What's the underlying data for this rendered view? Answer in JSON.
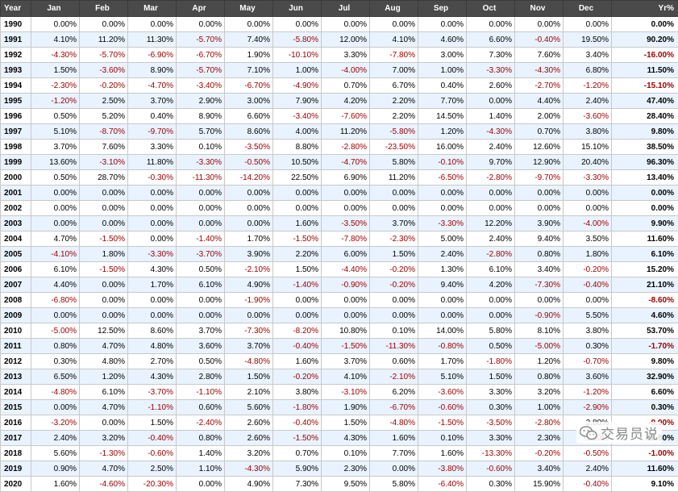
{
  "header": [
    "Year",
    "Jan",
    "Feb",
    "Mar",
    "Apr",
    "May",
    "Jun",
    "Jul",
    "Aug",
    "Sep",
    "Oct",
    "Nov",
    "Dec",
    "Yr%"
  ],
  "rows": [
    [
      "1990",
      "0.00%",
      "0.00%",
      "0.00%",
      "0.00%",
      "0.00%",
      "0.00%",
      "0.00%",
      "0.00%",
      "0.00%",
      "0.00%",
      "0.00%",
      "0.00%",
      "0.00%"
    ],
    [
      "1991",
      "4.10%",
      "11.20%",
      "11.30%",
      "-5.70%",
      "7.40%",
      "-5.80%",
      "12.00%",
      "4.10%",
      "4.60%",
      "6.60%",
      "-0.40%",
      "19.50%",
      "90.20%"
    ],
    [
      "1992",
      "-4.30%",
      "-5.70%",
      "-6.90%",
      "-6.70%",
      "1.90%",
      "-10.10%",
      "3.30%",
      "-7.80%",
      "3.00%",
      "7.30%",
      "7.60%",
      "3.40%",
      "-16.00%"
    ],
    [
      "1993",
      "1.50%",
      "-3.60%",
      "8.90%",
      "-5.70%",
      "7.10%",
      "1.00%",
      "-4.00%",
      "7.00%",
      "1.00%",
      "-3.30%",
      "-4.30%",
      "6.80%",
      "11.50%"
    ],
    [
      "1994",
      "-2.30%",
      "-0.20%",
      "-4.70%",
      "-3.40%",
      "-6.70%",
      "-4.90%",
      "0.70%",
      "6.70%",
      "0.40%",
      "2.60%",
      "-2.70%",
      "-1.20%",
      "-15.10%"
    ],
    [
      "1995",
      "-1.20%",
      "2.50%",
      "3.70%",
      "2.90%",
      "3.00%",
      "7.90%",
      "4.20%",
      "2.20%",
      "7.70%",
      "0.00%",
      "4.40%",
      "2.40%",
      "47.40%"
    ],
    [
      "1996",
      "0.50%",
      "5.20%",
      "0.40%",
      "8.90%",
      "6.60%",
      "-3.40%",
      "-7.60%",
      "2.20%",
      "14.50%",
      "1.40%",
      "2.00%",
      "-3.60%",
      "28.40%"
    ],
    [
      "1997",
      "5.10%",
      "-8.70%",
      "-9.70%",
      "5.70%",
      "8.60%",
      "4.00%",
      "11.20%",
      "-5.80%",
      "1.20%",
      "-4.30%",
      "0.70%",
      "3.80%",
      "9.80%"
    ],
    [
      "1998",
      "3.70%",
      "7.60%",
      "3.30%",
      "0.10%",
      "-3.50%",
      "8.80%",
      "-2.80%",
      "-23.50%",
      "16.00%",
      "2.40%",
      "12.60%",
      "15.10%",
      "38.50%"
    ],
    [
      "1999",
      "13.60%",
      "-3.10%",
      "11.80%",
      "-3.30%",
      "-0.50%",
      "10.50%",
      "-4.70%",
      "5.80%",
      "-0.10%",
      "9.70%",
      "12.90%",
      "20.40%",
      "96.30%"
    ],
    [
      "2000",
      "0.50%",
      "28.70%",
      "-0.30%",
      "-11.30%",
      "-14.20%",
      "22.50%",
      "6.90%",
      "11.20%",
      "-6.50%",
      "-2.80%",
      "-9.70%",
      "-3.30%",
      "13.40%"
    ],
    [
      "2001",
      "0.00%",
      "0.00%",
      "0.00%",
      "0.00%",
      "0.00%",
      "0.00%",
      "0.00%",
      "0.00%",
      "0.00%",
      "0.00%",
      "0.00%",
      "0.00%",
      "0.00%"
    ],
    [
      "2002",
      "0.00%",
      "0.00%",
      "0.00%",
      "0.00%",
      "0.00%",
      "0.00%",
      "0.00%",
      "0.00%",
      "0.00%",
      "0.00%",
      "0.00%",
      "0.00%",
      "0.00%"
    ],
    [
      "2003",
      "0.00%",
      "0.00%",
      "0.00%",
      "0.00%",
      "0.00%",
      "1.60%",
      "-3.50%",
      "3.70%",
      "-3.30%",
      "12.20%",
      "3.90%",
      "-4.00%",
      "9.90%"
    ],
    [
      "2004",
      "4.70%",
      "-1.50%",
      "0.00%",
      "-1.40%",
      "1.70%",
      "-1.50%",
      "-7.80%",
      "-2.30%",
      "5.00%",
      "2.40%",
      "9.40%",
      "3.50%",
      "11.60%"
    ],
    [
      "2005",
      "-4.10%",
      "1.80%",
      "-3.30%",
      "-3.70%",
      "3.90%",
      "2.20%",
      "6.00%",
      "1.50%",
      "2.40%",
      "-2.80%",
      "0.80%",
      "1.80%",
      "6.10%"
    ],
    [
      "2006",
      "6.10%",
      "-1.50%",
      "4.30%",
      "0.50%",
      "-2.10%",
      "1.50%",
      "-4.40%",
      "-0.20%",
      "1.30%",
      "6.10%",
      "3.40%",
      "-0.20%",
      "15.20%"
    ],
    [
      "2007",
      "4.40%",
      "0.00%",
      "1.70%",
      "6.10%",
      "4.90%",
      "-1.40%",
      "-0.90%",
      "-0.20%",
      "9.40%",
      "4.20%",
      "-7.30%",
      "-0.40%",
      "21.10%"
    ],
    [
      "2008",
      "-6.80%",
      "0.00%",
      "0.00%",
      "0.00%",
      "-1.90%",
      "0.00%",
      "0.00%",
      "0.00%",
      "0.00%",
      "0.00%",
      "0.00%",
      "0.00%",
      "-8.60%"
    ],
    [
      "2009",
      "0.00%",
      "0.00%",
      "0.00%",
      "0.00%",
      "0.00%",
      "0.00%",
      "0.00%",
      "0.00%",
      "0.00%",
      "0.00%",
      "-0.90%",
      "5.50%",
      "4.60%"
    ],
    [
      "2010",
      "-5.00%",
      "12.50%",
      "8.60%",
      "3.70%",
      "-7.30%",
      "-8.20%",
      "10.80%",
      "0.10%",
      "14.00%",
      "5.80%",
      "8.10%",
      "3.80%",
      "53.70%"
    ],
    [
      "2011",
      "0.80%",
      "4.70%",
      "4.80%",
      "3.60%",
      "3.70%",
      "-0.40%",
      "-1.50%",
      "-11.30%",
      "-0.80%",
      "0.50%",
      "-5.00%",
      "0.30%",
      "-1.70%"
    ],
    [
      "2012",
      "0.30%",
      "4.80%",
      "2.70%",
      "0.50%",
      "-4.80%",
      "1.60%",
      "3.70%",
      "0.60%",
      "1.70%",
      "-1.80%",
      "1.20%",
      "-0.70%",
      "9.80%"
    ],
    [
      "2013",
      "6.50%",
      "1.20%",
      "4.30%",
      "2.80%",
      "1.50%",
      "-0.20%",
      "4.10%",
      "-2.10%",
      "5.10%",
      "1.50%",
      "0.80%",
      "3.60%",
      "32.90%"
    ],
    [
      "2014",
      "-4.80%",
      "6.10%",
      "-3.70%",
      "-1.10%",
      "2.10%",
      "3.80%",
      "-3.10%",
      "6.20%",
      "-3.60%",
      "3.30%",
      "3.20%",
      "-1.20%",
      "6.60%"
    ],
    [
      "2015",
      "0.00%",
      "4.70%",
      "-1.10%",
      "0.60%",
      "5.60%",
      "-1.80%",
      "1.90%",
      "-6.70%",
      "-0.60%",
      "0.30%",
      "1.00%",
      "-2.90%",
      "0.30%"
    ],
    [
      "2016",
      "-3.20%",
      "0.00%",
      "1.50%",
      "-2.40%",
      "2.60%",
      "-0.40%",
      "1.50%",
      "-4.80%",
      "-1.50%",
      "-3.50%",
      "-2.80%",
      "2.80%",
      "-9.90%"
    ],
    [
      "2017",
      "2.40%",
      "3.20%",
      "-0.40%",
      "0.80%",
      "2.60%",
      "-1.50%",
      "4.30%",
      "1.60%",
      "0.10%",
      "3.30%",
      "2.30%",
      "-1.00%",
      "18.80%"
    ],
    [
      "2018",
      "5.60%",
      "-1.30%",
      "-0.60%",
      "1.40%",
      "3.20%",
      "0.70%",
      "0.10%",
      "7.70%",
      "1.60%",
      "-13.30%",
      "-0.20%",
      "-0.50%",
      "-1.00%"
    ],
    [
      "2019",
      "0.90%",
      "4.70%",
      "2.50%",
      "1.10%",
      "-4.30%",
      "5.90%",
      "2.30%",
      "0.00%",
      "-3.80%",
      "-0.60%",
      "3.40%",
      "2.40%",
      "11.60%"
    ],
    [
      "2020",
      "1.60%",
      "-4.60%",
      "-20.30%",
      "0.00%",
      "4.90%",
      "7.30%",
      "9.50%",
      "5.80%",
      "-6.40%",
      "0.30%",
      "15.90%",
      "-0.40%",
      "9.10%"
    ]
  ],
  "watermark": {
    "text": "交易员说",
    "icon": "wechat-icon"
  },
  "colors": {
    "header_bg": "#4a4a4a",
    "negative": "#a00000",
    "row_alt": "#e9f3ff"
  }
}
